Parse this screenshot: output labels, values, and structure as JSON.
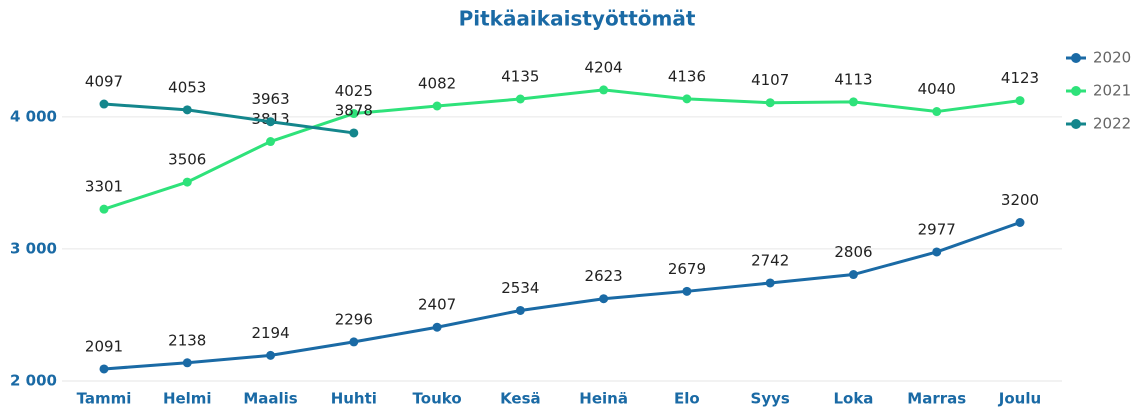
{
  "chart_data": {
    "type": "line",
    "title": "Pitkäaikaistyöttömät",
    "categories": [
      "Tammi",
      "Helmi",
      "Maalis",
      "Huhti",
      "Touko",
      "Kesä",
      "Heinä",
      "Elo",
      "Syys",
      "Loka",
      "Marras",
      "Joulu"
    ],
    "series": [
      {
        "name": "2020",
        "color": "#1a6aa5",
        "values": [
          2091,
          2138,
          2194,
          2296,
          2407,
          2534,
          2623,
          2679,
          2742,
          2806,
          2977,
          3200
        ]
      },
      {
        "name": "2021",
        "color": "#2ee27a",
        "values": [
          3301,
          3506,
          3813,
          4025,
          4082,
          4135,
          4204,
          4136,
          4107,
          4113,
          4040,
          4123
        ]
      },
      {
        "name": "2022",
        "color": "#14868c",
        "values": [
          4097,
          4053,
          3963,
          3878,
          null,
          null,
          null,
          null,
          null,
          null,
          null,
          null
        ]
      }
    ],
    "ylim": [
      2000,
      4400
    ],
    "yticks": [
      {
        "value": 2000,
        "label": "2 000"
      },
      {
        "value": 3000,
        "label": "3 000"
      },
      {
        "value": 4000,
        "label": "4 000"
      }
    ],
    "grid": true,
    "legend": "right"
  }
}
